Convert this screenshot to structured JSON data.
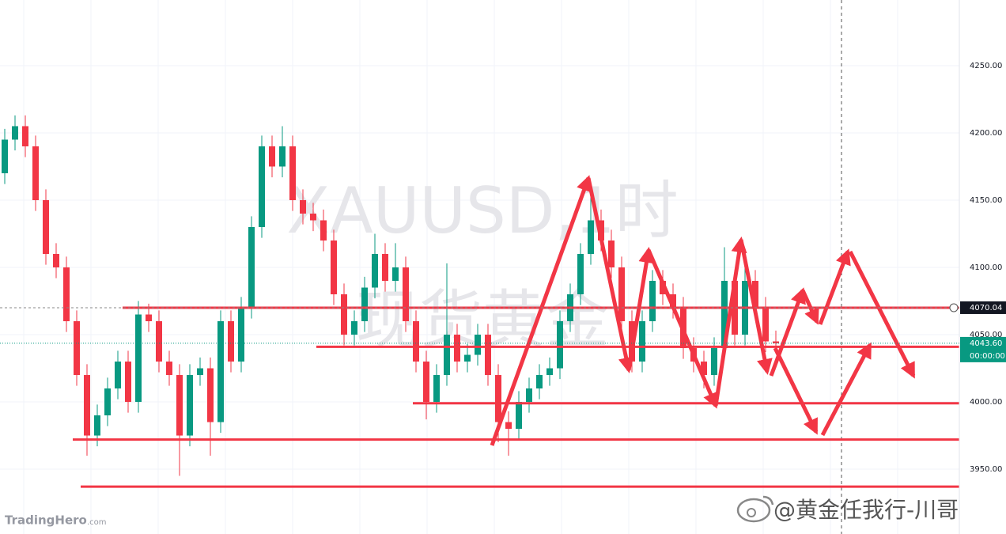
{
  "chart_data": {
    "type": "candlestick",
    "watermark_symbol": "XAUUSD,1时",
    "watermark_name": "现货黄金",
    "brand": "TradingHero",
    "brand_suffix": ".com",
    "credit": "@黄金任我行-川哥",
    "up_color": "#089981",
    "down_color": "#f23645",
    "level_color": "#f23645",
    "grid": true,
    "ylim": [
      3901.8,
      4298.8
    ],
    "yticks": [
      {
        "value": 3950,
        "label": "3950.00"
      },
      {
        "value": 4000,
        "label": "4000.00"
      },
      {
        "value": 4050,
        "label": "4050.00"
      },
      {
        "value": 4100,
        "label": "4100.00"
      },
      {
        "value": 4150,
        "label": "4150.00"
      },
      {
        "value": 4200,
        "label": "4200.00"
      },
      {
        "value": 4250,
        "label": "4250.00"
      }
    ],
    "marked_price": {
      "value": 4070.04,
      "label": "4070.04"
    },
    "current_price": {
      "value": 4043.6,
      "label": "4043.60",
      "countdown": "00:00:00"
    },
    "levels": [
      4070,
      4041,
      3999,
      3972,
      3937
    ],
    "open": [
      4170,
      4195,
      4205,
      4190,
      4150,
      4110,
      4100,
      4060,
      4020,
      3975,
      3990,
      4010,
      4030,
      4000,
      4065,
      4060,
      4030,
      4020,
      3975,
      4020,
      4025,
      3985,
      4060,
      4030,
      4070,
      4130,
      4190,
      4175,
      4190,
      4150,
      4140,
      4135,
      4120,
      4080,
      4050,
      4060,
      4085,
      4110,
      4090,
      4100,
      4060,
      4030,
      4000,
      4020,
      4050,
      4030,
      4035,
      4050,
      4020,
      3985,
      3980,
      4000,
      4010,
      4020,
      4025,
      4060,
      4080,
      4110,
      4135,
      4120,
      4100,
      4060,
      4030,
      4060,
      4090,
      4080,
      4070,
      4040,
      4030,
      4020,
      4040,
      4090,
      4050,
      4090,
      4070,
      4045
    ],
    "high": [
      4203,
      4213,
      4213,
      4198,
      4158,
      4118,
      4108,
      4068,
      4028,
      3998,
      4018,
      4038,
      4038,
      4075,
      4073,
      4068,
      4038,
      4028,
      4028,
      4033,
      4033,
      4068,
      4068,
      4078,
      4138,
      4198,
      4198,
      4205,
      4198,
      4158,
      4148,
      4143,
      4128,
      4088,
      4068,
      4093,
      4125,
      4118,
      4118,
      4108,
      4068,
      4038,
      4028,
      4103,
      4058,
      4043,
      4058,
      4058,
      4028,
      3993,
      4008,
      4018,
      4028,
      4033,
      4068,
      4088,
      4118,
      4160,
      4143,
      4128,
      4108,
      4068,
      4068,
      4098,
      4098,
      4088,
      4078,
      4048,
      4038,
      4048,
      4115,
      4098,
      4108,
      4098,
      4078,
      4053
    ],
    "low": [
      4162,
      4187,
      4182,
      4142,
      4102,
      4092,
      4052,
      4012,
      3960,
      3967,
      3982,
      4002,
      3992,
      3992,
      4052,
      4022,
      4012,
      3945,
      3967,
      4012,
      3960,
      3977,
      4022,
      4022,
      4062,
      4122,
      4167,
      4167,
      4142,
      4132,
      4127,
      4112,
      4072,
      4042,
      4042,
      4052,
      4077,
      4082,
      4082,
      4052,
      4022,
      3987,
      3992,
      4012,
      4022,
      4022,
      4027,
      4012,
      3970,
      3960,
      3972,
      3992,
      4002,
      4012,
      4017,
      4052,
      4072,
      4102,
      4112,
      4092,
      4052,
      4022,
      4022,
      4052,
      4072,
      4062,
      4032,
      4022,
      4010,
      4012,
      4032,
      4042,
      4042,
      4062,
      4037,
      4036
    ],
    "close": [
      4195,
      4205,
      4190,
      4150,
      4110,
      4100,
      4060,
      4020,
      3975,
      3990,
      4010,
      4030,
      4000,
      4065,
      4060,
      4030,
      4020,
      3975,
      4020,
      4025,
      3985,
      4060,
      4030,
      4070,
      4130,
      4190,
      4175,
      4190,
      4150,
      4140,
      4135,
      4120,
      4080,
      4050,
      4060,
      4085,
      4110,
      4090,
      4100,
      4060,
      4030,
      4000,
      4020,
      4050,
      4030,
      4035,
      4050,
      4020,
      3985,
      3980,
      4000,
      4010,
      4020,
      4025,
      4060,
      4080,
      4110,
      4135,
      4120,
      4100,
      4060,
      4030,
      4060,
      4090,
      4080,
      4070,
      4040,
      4030,
      4020,
      4040,
      4090,
      4050,
      4090,
      4070,
      4045,
      4043.6
    ]
  }
}
